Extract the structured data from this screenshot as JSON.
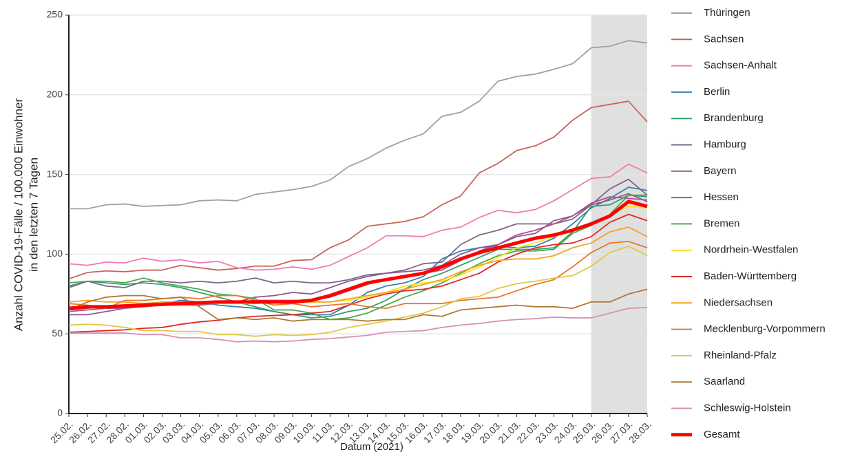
{
  "chart_data": {
    "type": "line",
    "xlabel": "Datum (2021)",
    "ylabel": [
      "Anzahl COVID-19-Fälle / 100.000 Einwohner",
      "in den letzten 7 Tagen"
    ],
    "categories": [
      "25.02.",
      "26.02.",
      "27.02.",
      "28.02.",
      "01.03.",
      "02.03.",
      "03.03.",
      "04.03.",
      "05.03.",
      "06.03.",
      "07.03.",
      "08.03.",
      "09.03.",
      "10.03.",
      "11.03.",
      "12.03.",
      "13.03.",
      "14.03.",
      "15.03.",
      "16.03.",
      "17.03.",
      "18.03.",
      "19.03.",
      "20.03.",
      "21.03.",
      "22.03.",
      "23.03.",
      "24.03.",
      "25.03.",
      "26.03.",
      "27.03.",
      "28.03."
    ],
    "ylim": [
      0,
      250
    ],
    "yticks": [
      0,
      50,
      100,
      150,
      200,
      250
    ],
    "grid": true,
    "highlight": {
      "from": "25.03.",
      "to": "28.03."
    },
    "series": [
      {
        "name": "Thüringen",
        "color": "#a0a0a0",
        "values": [
          128.5,
          128.5,
          131,
          131.5,
          130,
          130.5,
          131,
          133.5,
          134,
          133.5,
          137.5,
          139,
          140.5,
          142.5,
          146.5,
          155,
          160,
          166.5,
          171.5,
          175.5,
          186.5,
          189,
          196,
          208.5,
          211.5,
          213,
          216,
          219.5,
          229.5,
          230.5,
          234,
          232.5
        ]
      },
      {
        "name": "Sachsen",
        "color": "#c8645a",
        "values": [
          84.5,
          88.5,
          89.5,
          89,
          90,
          90,
          93,
          91.5,
          90,
          91,
          92.5,
          92.5,
          96,
          96.5,
          104,
          109,
          117.5,
          119,
          120.5,
          123.5,
          131,
          136.5,
          151,
          157,
          165,
          168,
          173.5,
          184,
          192,
          194,
          196,
          183
        ]
      },
      {
        "name": "Sachsen-Anhalt",
        "color": "#f07cb4",
        "values": [
          94,
          93,
          95,
          94.5,
          97.5,
          95.5,
          96.5,
          94.5,
          95.5,
          91.5,
          90,
          90.5,
          92,
          90.5,
          93,
          98.5,
          104,
          111.5,
          111.5,
          111,
          115,
          117,
          123,
          127.5,
          126,
          128,
          133.5,
          140.5,
          147.5,
          148.5,
          156.5,
          151
        ]
      },
      {
        "name": "Berlin",
        "color": "#3a7fb0",
        "values": [
          65,
          66,
          67,
          67,
          68,
          69,
          71,
          70,
          68,
          67,
          66,
          64,
          62,
          62,
          62,
          68,
          76,
          80,
          82,
          86,
          97,
          102,
          104,
          105,
          104,
          105,
          110,
          119,
          129,
          135,
          142,
          140
        ]
      },
      {
        "name": "Brandenburg",
        "color": "#34a06a",
        "values": [
          80,
          83,
          82,
          81,
          82,
          81,
          79,
          76,
          73,
          70,
          67,
          64,
          62,
          60,
          61,
          64,
          66,
          71,
          78,
          84,
          88,
          93,
          98,
          103,
          103,
          103,
          104,
          114,
          130,
          131,
          137,
          136
        ]
      },
      {
        "name": "Hamburg",
        "color": "#7a6888",
        "values": [
          79,
          83,
          80,
          79,
          83,
          83,
          82,
          83,
          82,
          83,
          85,
          82,
          83,
          82,
          82,
          84,
          87,
          88,
          90,
          94,
          95,
          106,
          112,
          115,
          119,
          119,
          119,
          122,
          131,
          141,
          147,
          137
        ]
      },
      {
        "name": "Bayern",
        "color": "#8e5a8e",
        "values": [
          62,
          62,
          64,
          66,
          68,
          68,
          68,
          68,
          69,
          70,
          73,
          74,
          76,
          75,
          79,
          83,
          86,
          88,
          89,
          90,
          93,
          100,
          104,
          106,
          111,
          113,
          121,
          124,
          131,
          134,
          138,
          133
        ]
      },
      {
        "name": "Hessen",
        "color": "#b0508e",
        "values": [
          64,
          65,
          66,
          66,
          67,
          68,
          69,
          69,
          69,
          70,
          71,
          71,
          71,
          71,
          73,
          77,
          81,
          84,
          86,
          88,
          90,
          96,
          102,
          106,
          112,
          115,
          119,
          124,
          132,
          136,
          135,
          134
        ]
      },
      {
        "name": "Bremen",
        "color": "#4caa4c",
        "values": [
          82,
          83,
          83,
          82,
          85,
          82,
          80,
          78,
          75,
          74,
          72,
          65,
          65,
          63,
          59,
          60,
          63,
          68,
          73,
          77,
          82,
          88,
          94,
          99,
          102,
          102,
          103,
          113,
          118,
          125,
          137,
          137
        ]
      },
      {
        "name": "Nordrhein-Westfalen",
        "color": "#ffe020",
        "values": [
          66,
          67,
          67,
          67,
          68,
          68,
          68,
          69,
          69,
          69,
          69,
          70,
          69,
          70,
          70,
          71,
          73,
          76,
          80,
          82,
          83,
          87,
          92,
          98,
          104,
          107,
          111,
          115,
          119,
          125,
          130,
          129
        ]
      },
      {
        "name": "Baden-Württemberg",
        "color": "#e02828",
        "values": [
          51,
          51.5,
          52,
          52.5,
          53.5,
          54,
          56,
          57.5,
          58.5,
          60,
          61,
          61.5,
          62,
          63,
          64,
          68,
          72,
          75,
          77,
          78,
          80,
          84,
          88,
          95,
          100,
          104,
          106,
          107,
          111,
          120,
          125,
          121
        ]
      },
      {
        "name": "Niedersachsen",
        "color": "#f8a020",
        "values": [
          70,
          71,
          70,
          70,
          69,
          70,
          70,
          70,
          70,
          70,
          69,
          70,
          70,
          70,
          70,
          72,
          74,
          76,
          78,
          81,
          84,
          89,
          93,
          96,
          97,
          97,
          99,
          104,
          107,
          114,
          117,
          111
        ]
      },
      {
        "name": "Mecklenburg-Vorpommern",
        "color": "#e87830",
        "values": [
          69,
          68,
          66,
          71,
          71,
          72,
          73,
          72,
          74,
          74,
          71,
          68,
          69,
          67,
          68,
          69,
          67,
          66,
          69,
          69,
          69,
          71,
          72,
          73,
          77,
          81,
          84,
          92,
          101,
          107,
          108,
          104
        ]
      },
      {
        "name": "Rheinland-Pfalz",
        "color": "#e0c840",
        "values": [
          55.5,
          56,
          55.5,
          54,
          52,
          52,
          51.5,
          51.5,
          49.5,
          49.5,
          48.5,
          49.5,
          49,
          49.5,
          51,
          54,
          56,
          58,
          60.5,
          63,
          67,
          72,
          73.5,
          78.5,
          81.5,
          83,
          85,
          86.5,
          92.5,
          101,
          105,
          99
        ]
      },
      {
        "name": "Saarland",
        "color": "#b07838",
        "values": [
          65,
          70,
          73,
          74,
          74,
          72,
          73,
          67,
          59,
          60,
          59,
          60,
          58,
          59,
          59,
          59,
          58,
          59,
          59,
          62,
          61,
          65,
          66,
          67,
          68,
          67,
          67,
          66,
          70,
          70,
          75,
          78
        ]
      },
      {
        "name": "Schleswig-Holstein",
        "color": "#d890b8",
        "values": [
          50.5,
          50.5,
          50.5,
          50.5,
          49.5,
          49.5,
          47.5,
          47.5,
          46.5,
          45,
          45.5,
          45,
          45.5,
          46.5,
          47,
          48,
          49,
          51,
          51.5,
          52,
          54,
          55.5,
          56.5,
          58,
          59,
          59.5,
          60.5,
          60,
          60,
          63,
          66,
          66.5
        ]
      },
      {
        "name": "Gesamt",
        "color": "#ff0000",
        "width": 5,
        "values": [
          66,
          67,
          67,
          67.5,
          68,
          68.5,
          69,
          69.5,
          70,
          70,
          70,
          70,
          70,
          71,
          74,
          78,
          82,
          84,
          86,
          88,
          92,
          97,
          101,
          104,
          107,
          110,
          112,
          115,
          119,
          124,
          133,
          130
        ]
      }
    ]
  }
}
